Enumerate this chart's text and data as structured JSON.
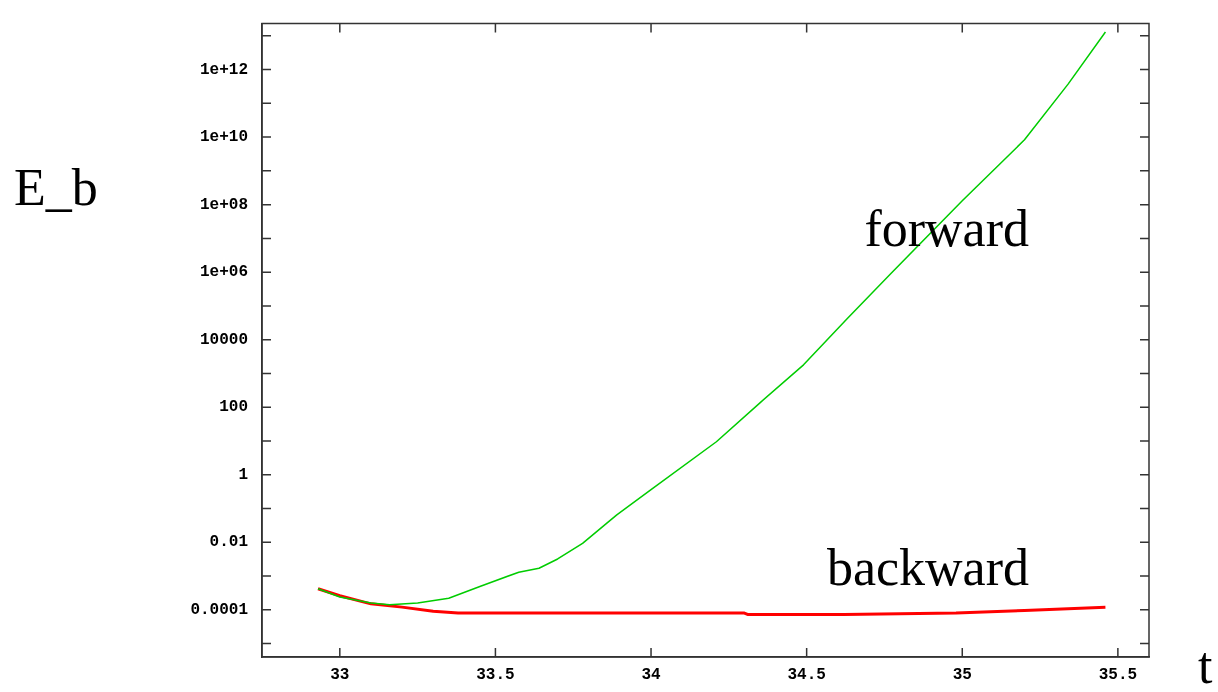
{
  "chart_data": {
    "type": "line",
    "xlabel": "t",
    "ylabel": "E_b",
    "log": "y",
    "grid": false,
    "legend": false,
    "marker": "none",
    "line_style": "solid",
    "xlim": [
      32.75,
      35.6
    ],
    "xticks": [
      33,
      33.5,
      34,
      34.5,
      35,
      35.5
    ],
    "ylim": [
      4e-06,
      23000000000000.0
    ],
    "yticks": [
      {
        "value": 1e-05,
        "label": null
      },
      {
        "value": 0.0001,
        "label": "0.0001"
      },
      {
        "value": 0.001,
        "label": null
      },
      {
        "value": 0.01,
        "label": "0.01"
      },
      {
        "value": 0.1,
        "label": null
      },
      1,
      {
        "value": 10,
        "label": null
      },
      100,
      {
        "value": 1000,
        "label": null
      },
      10000,
      {
        "value": 100000.0,
        "label": null
      },
      {
        "value": 1000000.0,
        "label": "1e+06"
      },
      {
        "value": 10000000.0,
        "label": null
      },
      {
        "value": 100000000.0,
        "label": "1e+08"
      },
      {
        "value": 1000000000.0,
        "label": null
      },
      {
        "value": 10000000000.0,
        "label": "1e+10"
      },
      {
        "value": 100000000000.0,
        "label": null
      },
      {
        "value": 1000000000000.0,
        "label": "1e+12"
      },
      {
        "value": 10000000000000.0,
        "label": null
      }
    ],
    "series": [
      {
        "name": "forward",
        "color": "#00cc00",
        "x": [
          32.93,
          33.0,
          33.1,
          33.16,
          33.25,
          33.35,
          33.45,
          33.575,
          33.64,
          33.7,
          33.78,
          33.86,
          33.89,
          34.0,
          34.21,
          34.35,
          34.49,
          34.63,
          34.77,
          35.0,
          35.2,
          35.34,
          35.46
        ],
        "values": [
          0.00042,
          0.00024,
          0.00016,
          0.00014,
          0.00016,
          0.00022,
          0.00049,
          0.0013,
          0.0017,
          0.0032,
          0.0093,
          0.038,
          0.065,
          0.36,
          9.5,
          135,
          1800,
          42000,
          900000,
          130000000,
          8300000000,
          370000000000,
          13000000000000
        ]
      },
      {
        "name": "backward",
        "color": "#ff0000",
        "x": [
          32.93,
          33.0,
          33.1,
          33.2,
          33.3,
          33.38,
          34.3,
          34.31,
          34.62,
          34.98,
          35.2,
          35.46
        ],
        "values": [
          0.00042,
          0.00026,
          0.00015,
          0.00012,
          9e-05,
          8e-05,
          8e-05,
          7.3e-05,
          7.3e-05,
          8e-05,
          9.5e-05,
          0.00012
        ]
      }
    ]
  }
}
